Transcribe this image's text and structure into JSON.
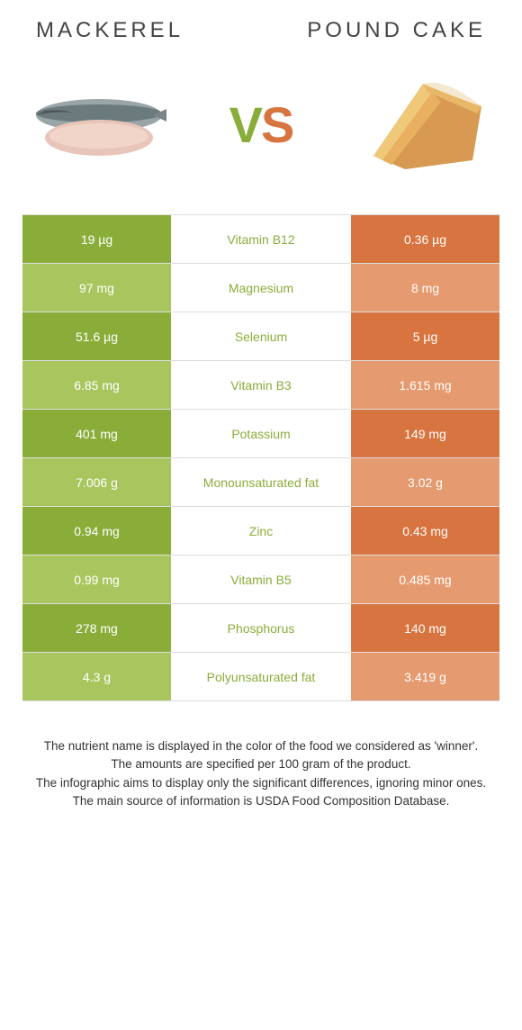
{
  "colors": {
    "green_dark": "#8aad3a",
    "green_light": "#a9c65e",
    "orange_dark": "#d8743f",
    "orange_light": "#e59a6f",
    "row_border": "#dddddd",
    "text_title": "#444444",
    "footer_text": "#333333"
  },
  "header": {
    "left_title": "MACKEREL",
    "right_title": "POUND CAKE",
    "vs_v": "V",
    "vs_s": "S"
  },
  "table": {
    "rows": [
      {
        "left": "19 µg",
        "mid": "Vitamin B12",
        "right": "0.36 µg",
        "winner": "left"
      },
      {
        "left": "97 mg",
        "mid": "Magnesium",
        "right": "8 mg",
        "winner": "left"
      },
      {
        "left": "51.6 µg",
        "mid": "Selenium",
        "right": "5 µg",
        "winner": "left"
      },
      {
        "left": "6.85 mg",
        "mid": "Vitamin B3",
        "right": "1.615 mg",
        "winner": "left"
      },
      {
        "left": "401 mg",
        "mid": "Potassium",
        "right": "149 mg",
        "winner": "left"
      },
      {
        "left": "7.006 g",
        "mid": "Monounsaturated fat",
        "right": "3.02 g",
        "winner": "left"
      },
      {
        "left": "0.94 mg",
        "mid": "Zinc",
        "right": "0.43 mg",
        "winner": "left"
      },
      {
        "left": "0.99 mg",
        "mid": "Vitamin B5",
        "right": "0.485 mg",
        "winner": "left"
      },
      {
        "left": "278 mg",
        "mid": "Phosphorus",
        "right": "140 mg",
        "winner": "left"
      },
      {
        "left": "4.3 g",
        "mid": "Polyunsaturated fat",
        "right": "3.419 g",
        "winner": "left"
      }
    ]
  },
  "footer": {
    "line1": "The nutrient name is displayed in the color of the food we considered as 'winner'.",
    "line2": "The amounts are specified per 100 gram of the product.",
    "line3": "The infographic aims to display only the significant differences, ignoring minor ones.",
    "line4": "The main source of information is USDA Food Composition Database."
  }
}
